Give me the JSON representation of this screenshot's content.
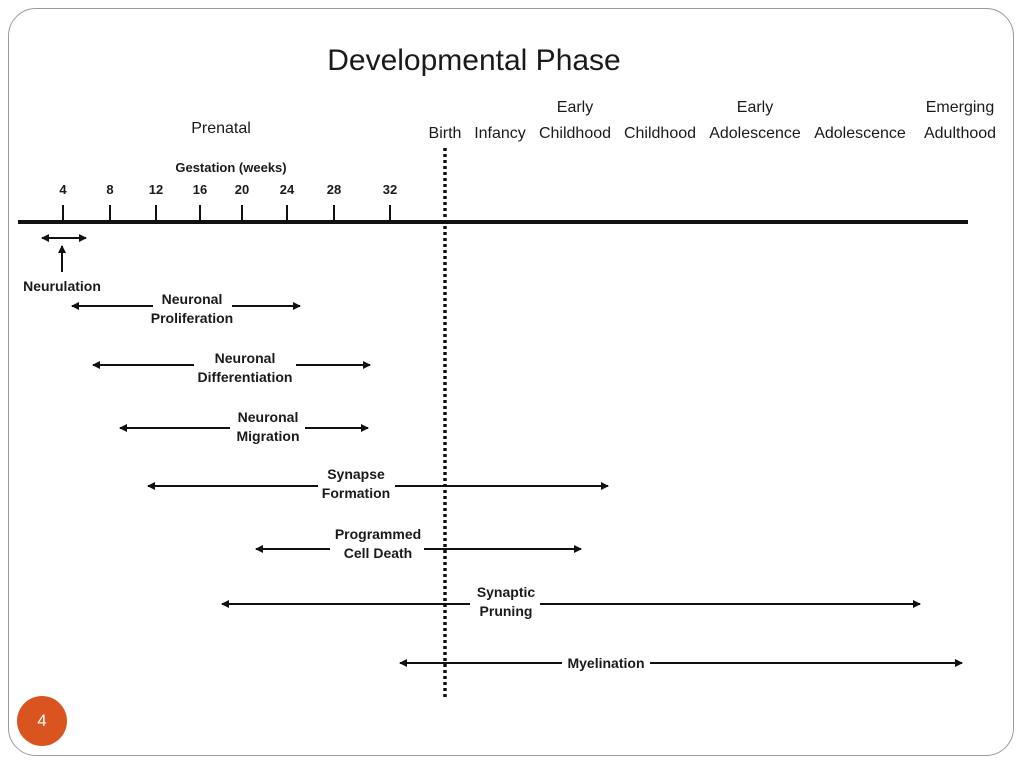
{
  "title": "Developmental Phase",
  "prenatal_label": "Prenatal",
  "gestation_label": "Gestation (weeks)",
  "gestation_weeks": [
    "4",
    "8",
    "12",
    "16",
    "20",
    "24",
    "28",
    "32"
  ],
  "phases": [
    {
      "lines": [
        "Birth"
      ]
    },
    {
      "lines": [
        "Infancy"
      ]
    },
    {
      "lines": [
        "Early",
        "Childhood"
      ]
    },
    {
      "lines": [
        "Childhood"
      ]
    },
    {
      "lines": [
        "Early",
        "Adolescence"
      ]
    },
    {
      "lines": [
        "Adolescence"
      ]
    },
    {
      "lines": [
        "Emerging",
        "Adulthood"
      ]
    }
  ],
  "processes": [
    {
      "lines": [
        "Neurulation"
      ]
    },
    {
      "lines": [
        "Neuronal",
        "Proliferation"
      ]
    },
    {
      "lines": [
        "Neuronal",
        "Differentiation"
      ]
    },
    {
      "lines": [
        "Neuronal",
        "Migration"
      ]
    },
    {
      "lines": [
        "Synapse",
        "Formation"
      ]
    },
    {
      "lines": [
        "Programmed",
        "Cell Death"
      ]
    },
    {
      "lines": [
        "Synaptic",
        "Pruning"
      ]
    },
    {
      "lines": [
        "Myelination"
      ]
    }
  ],
  "page_number": "4",
  "colors": {
    "line": "#111111",
    "text": "#1a1a1a",
    "page_badge": "#d9541e",
    "frame": "#9a9a9a"
  }
}
